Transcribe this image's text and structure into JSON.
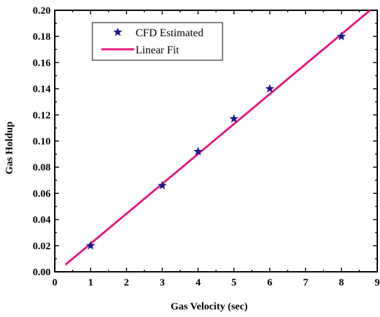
{
  "chart_data": {
    "type": "scatter",
    "xlabel": "Gas Velocity (sec)",
    "ylabel": "Gas Holdup",
    "xlim": [
      0,
      9
    ],
    "ylim": [
      0.0,
      0.2
    ],
    "x_ticks": [
      "0",
      "1",
      "2",
      "3",
      "4",
      "5",
      "6",
      "7",
      "8",
      "9"
    ],
    "y_ticks": [
      "0.00",
      "0.02",
      "0.04",
      "0.06",
      "0.08",
      "0.10",
      "0.12",
      "0.14",
      "0.16",
      "0.18",
      "0.20"
    ],
    "grid": false,
    "legend_position": "top-left",
    "series": [
      {
        "name": "CFD Estimated",
        "kind": "points",
        "marker": "star",
        "color": "#1a1a8c",
        "x": [
          1,
          3,
          4,
          5,
          6,
          8
        ],
        "y": [
          0.02,
          0.066,
          0.092,
          0.117,
          0.14,
          0.18
        ]
      },
      {
        "name": "Linear Fit",
        "kind": "line",
        "color": "#e8157f",
        "x": [
          0.3,
          8.8
        ],
        "y": [
          0.0055,
          0.2
        ]
      }
    ]
  }
}
